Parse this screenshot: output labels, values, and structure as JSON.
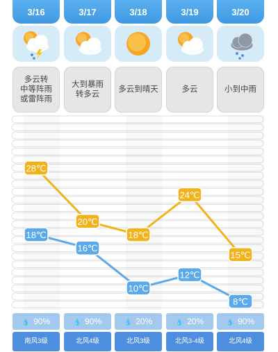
{
  "days": [
    {
      "date": "3/16",
      "icon": "cloud-sun-thunder-rain-icon",
      "desc_lines": [
        "多云转",
        "中等阵雨",
        "或雷阵雨"
      ],
      "high": "28℃",
      "low": "18℃",
      "humidity": "90%",
      "wind": "南风3级"
    },
    {
      "date": "3/17",
      "icon": "partly-cloudy-icon",
      "desc_lines": [
        "大到暴雨",
        "转多云"
      ],
      "high": "20℃",
      "low": "16℃",
      "humidity": "90%",
      "wind": "北风4级"
    },
    {
      "date": "3/18",
      "icon": "sun-icon",
      "desc_lines": [
        "多云到晴天"
      ],
      "high": "18℃",
      "low": "10℃",
      "humidity": "20%",
      "wind": "北风3级"
    },
    {
      "date": "3/19",
      "icon": "partly-cloudy-icon",
      "desc_lines": [
        "多云"
      ],
      "high": "24℃",
      "low": "12℃",
      "humidity": "20%",
      "wind": "北风3-4级"
    },
    {
      "date": "3/20",
      "icon": "rain-cloud-icon",
      "desc_lines": [
        "小到中雨"
      ],
      "high": "15℃",
      "low": "8℃",
      "humidity": "90%",
      "wind": "北风4级"
    }
  ],
  "chart_data": {
    "type": "line",
    "categories": [
      "3/16",
      "3/17",
      "3/18",
      "3/19",
      "3/20"
    ],
    "series": [
      {
        "values": [
          28,
          20,
          18,
          24,
          15
        ],
        "color": "#f2b21c"
      },
      {
        "values": [
          18,
          16,
          10,
          12,
          8
        ],
        "color": "#5aa9ea"
      }
    ],
    "unit": "℃"
  }
}
